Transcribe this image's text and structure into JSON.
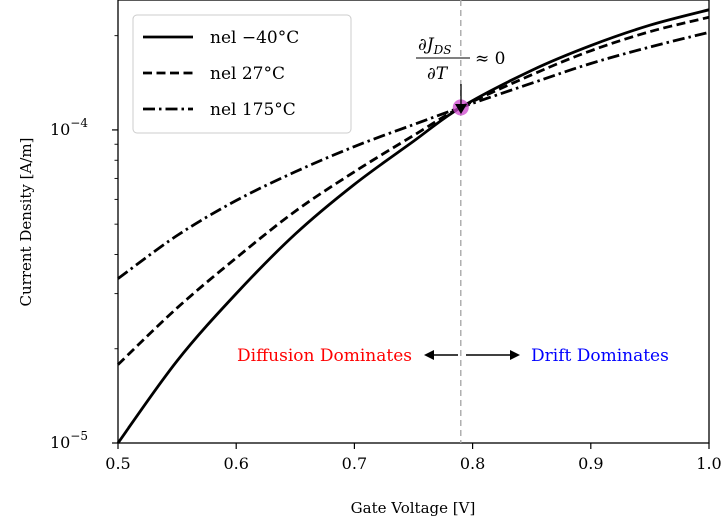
{
  "chart_data": {
    "type": "line",
    "xlabel": "Gate Voltage [V]",
    "ylabel": "Current Density [A/m]",
    "xlim": [
      0.5,
      1.0
    ],
    "ylim": [
      1e-05,
      0.00026
    ],
    "yscale": "log",
    "xticks": [
      "0.5",
      "0.6",
      "0.7",
      "0.8",
      "0.9",
      "1.0"
    ],
    "yticks": [
      {
        "base": "10",
        "exp": "−5",
        "value": 1e-05
      },
      {
        "base": "10",
        "exp": "−4",
        "value": 0.0001
      }
    ],
    "grid": false,
    "legend_position": "top-left",
    "x": [
      0.5,
      0.55,
      0.6,
      0.65,
      0.7,
      0.75,
      0.79,
      0.85,
      0.9,
      0.95,
      1.0
    ],
    "series": [
      {
        "name": "nel −40°C",
        "linestyle": "solid",
        "values": [
          1e-05,
          1.83e-05,
          3e-05,
          4.65e-05,
          6.7e-05,
          9.2e-05,
          0.000118,
          0.000155,
          0.000186,
          0.000216,
          0.000242
        ]
      },
      {
        "name": "nel 27°C",
        "linestyle": "dashed",
        "values": [
          1.78e-05,
          2.7e-05,
          3.9e-05,
          5.5e-05,
          7.35e-05,
          9.6e-05,
          0.000118,
          0.00015,
          0.000179,
          0.000206,
          0.000229
        ]
      },
      {
        "name": "nel 175°C",
        "linestyle": "dashdot",
        "values": [
          3.35e-05,
          4.6e-05,
          5.95e-05,
          7.35e-05,
          8.85e-05,
          0.000104,
          0.000118,
          0.000141,
          0.000163,
          0.000184,
          0.000205
        ]
      }
    ],
    "vline_x": 0.79,
    "marker": {
      "x": 0.79,
      "y": 0.000118,
      "color": "#cc44cc"
    },
    "annotations": {
      "zero_tc_numerator": "∂J",
      "zero_tc_numerator_sub": "DS",
      "zero_tc_denominator": "∂T",
      "zero_tc_relation": "≈ 0",
      "diffusion_label": "Diffusion Dominates",
      "diffusion_color": "#ff0000",
      "drift_label": "Drift Dominates",
      "drift_color": "#0000ff"
    }
  }
}
